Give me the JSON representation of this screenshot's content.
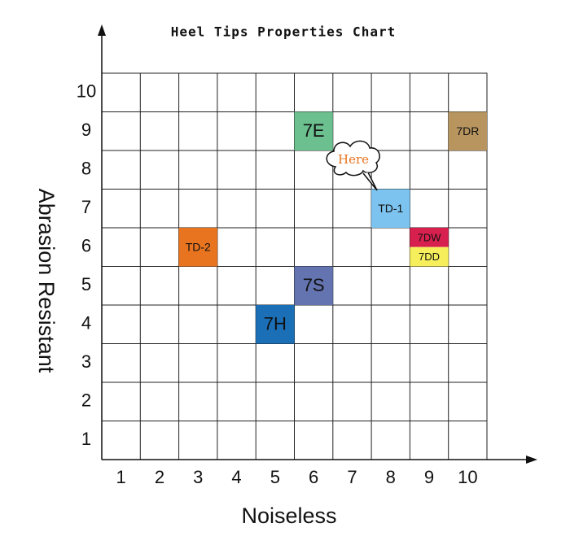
{
  "chart_data": {
    "type": "cell-grid",
    "title": "Heel Tips Properties Chart",
    "x_label": "Noiseless",
    "y_label": "Abrasion Resistant",
    "xlim": [
      0.5,
      10.5
    ],
    "ylim": [
      0.5,
      10.5
    ],
    "xticks": [
      1,
      2,
      3,
      4,
      5,
      6,
      7,
      8,
      9,
      10
    ],
    "yticks": [
      1,
      2,
      3,
      4,
      5,
      6,
      7,
      8,
      9,
      10
    ],
    "grid": true,
    "items": [
      {
        "label": "7E",
        "x": 6,
        "y": 9,
        "color": "#6cbf8e"
      },
      {
        "label": "7DR",
        "x": 10,
        "y": 9,
        "color": "#b8955f"
      },
      {
        "label": "TD-1",
        "x": 8,
        "y": 7,
        "color": "#7cc3ef"
      },
      {
        "label": "TD-2",
        "x": 3,
        "y": 6,
        "color": "#e8741f"
      },
      {
        "label": "7DW",
        "x": 9,
        "y": 6,
        "color": "#d8204f"
      },
      {
        "label": "7DD",
        "x": 9,
        "y": 6,
        "color": "#f6ef5b"
      },
      {
        "label": "7S",
        "x": 6,
        "y": 5,
        "color": "#6474b0"
      },
      {
        "label": "7H",
        "x": 5,
        "y": 4,
        "color": "#1b6fb6"
      }
    ],
    "annotation": "Here"
  }
}
